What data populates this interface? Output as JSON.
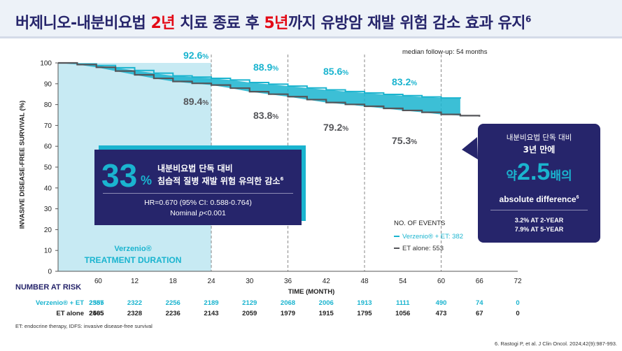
{
  "title": {
    "part1": "버제니오-내분비요법 ",
    "highlight1": "2년",
    "part2": " 치료 종료 후 ",
    "highlight2": "5년",
    "part3": "까지 유방암 재발 위험 감소 효과 유지",
    "sup": "6"
  },
  "colors": {
    "verzenio": "#1ab4cf",
    "et": "#55565a",
    "navy": "#26256b",
    "accent_red": "#e30b17"
  },
  "followup": "median follow-up: 54 months",
  "ylabel": "INVASIVE DISEASE-FREE SURVIVAL (%)",
  "treatment_duration": {
    "line1": "Verzenio®",
    "line2": "TREATMENT DURATION"
  },
  "annotations": {
    "ver": [
      {
        "value": "92.6",
        "pct": "%"
      },
      {
        "value": "88.9",
        "pct": "%"
      },
      {
        "value": "85.6",
        "pct": "%"
      },
      {
        "value": "83.2",
        "pct": "%"
      }
    ],
    "et": [
      {
        "value": "89.4",
        "pct": "%"
      },
      {
        "value": "83.8",
        "pct": "%"
      },
      {
        "value": "79.2",
        "pct": "%"
      },
      {
        "value": "75.3",
        "pct": "%"
      }
    ]
  },
  "box33": {
    "big": "33",
    "big_pct": "%",
    "line1": "내분비요법 단독 대비",
    "line2": "침습적 질병 재발 위험 유의한 감소",
    "line2_sup": "6",
    "hr": "HR=0.670 (95% CI: 0.588-0.764)",
    "nominal": "Nominal ",
    "p_italic": "p",
    "p_value": "<0.001"
  },
  "box_right": {
    "line1": "내분비요법 단독 대비",
    "line2": "3년 만에",
    "pre": "약",
    "big": "2.5",
    "post": "배의",
    "line4": "absolute difference",
    "line4_sup": "6",
    "line5": "3.2% AT 2-YEAR",
    "line6": "7.9% AT 5-YEAR"
  },
  "events": {
    "title": "NO. OF EVENTS",
    "ver": "Verzenio® + ET: 382",
    "et": "ET alone: 553"
  },
  "number_at_risk_label": "NUMBER AT RISK",
  "x_title": "TIME (MONTH)",
  "risk_table": {
    "ver_label": "Verzenio® + ET",
    "et_label": "ET alone",
    "ver": [
      "2555",
      "2387",
      "2322",
      "2256",
      "2189",
      "2129",
      "2068",
      "2006",
      "1913",
      "1111",
      "490",
      "74",
      "0"
    ],
    "et": [
      "2565",
      "2405",
      "2328",
      "2236",
      "2143",
      "2059",
      "1979",
      "1915",
      "1795",
      "1056",
      "473",
      "67",
      "0"
    ]
  },
  "footnote": "ET: endocrine therapy, IDFS: invasive disease-free survival",
  "reference": "6. Rastogi P, et al. J Clin Oncol. 2024;42(9):987-993.",
  "chart_data": {
    "type": "line",
    "x_label": "TIME (MONTH)",
    "y_label": "INVASIVE DISEASE-FREE SURVIVAL (%)",
    "xlim": [
      0,
      72
    ],
    "ylim": [
      0,
      100
    ],
    "x_ticks": [
      0,
      6,
      12,
      18,
      24,
      30,
      36,
      42,
      48,
      54,
      60,
      66,
      72
    ],
    "y_ticks": [
      0,
      10,
      20,
      30,
      40,
      50,
      60,
      70,
      80,
      90,
      100
    ],
    "treatment_duration_months": [
      0,
      24
    ],
    "landmarks": [
      {
        "x": 24,
        "ver": 92.6,
        "et": 89.4
      },
      {
        "x": 36,
        "ver": 88.9,
        "et": 83.8
      },
      {
        "x": 48,
        "ver": 85.6,
        "et": 79.2
      },
      {
        "x": 60,
        "ver": 83.2,
        "et": 75.3
      }
    ],
    "series": [
      {
        "name": "Verzenio® + ET",
        "x": [
          0,
          3,
          6,
          9,
          12,
          15,
          18,
          21,
          24,
          27,
          30,
          33,
          36,
          39,
          42,
          45,
          48,
          51,
          54,
          57,
          60,
          63,
          66,
          69,
          72
        ],
        "y": [
          100,
          99.5,
          98.8,
          97.7,
          96.4,
          95.1,
          93.8,
          93.2,
          92.6,
          91.8,
          90.6,
          89.8,
          88.9,
          88.0,
          87.1,
          86.3,
          85.6,
          84.9,
          84.3,
          83.7,
          83.2,
          82.9,
          82.6,
          82.6,
          82.6
        ]
      },
      {
        "name": "ET alone",
        "x": [
          0,
          3,
          6,
          9,
          12,
          15,
          18,
          21,
          24,
          27,
          30,
          33,
          36,
          39,
          42,
          45,
          48,
          51,
          54,
          57,
          60,
          63,
          66,
          69,
          72
        ],
        "y": [
          100,
          99.2,
          97.9,
          96.1,
          94.3,
          92.6,
          91.1,
          90.2,
          89.4,
          87.9,
          86.2,
          85.0,
          83.8,
          82.4,
          81.0,
          80.1,
          79.2,
          78.2,
          77.2,
          76.3,
          75.3,
          74.7,
          74.2,
          74.2,
          74.2
        ]
      }
    ]
  }
}
